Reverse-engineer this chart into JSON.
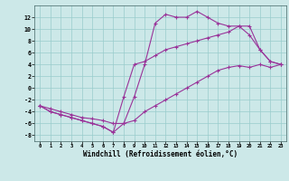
{
  "xlabel": "Windchill (Refroidissement éolien,°C)",
  "background_color": "#cce8e8",
  "grid_color": "#99cccc",
  "line_color": "#993399",
  "xlim": [
    -0.5,
    23.5
  ],
  "ylim": [
    -9,
    14
  ],
  "xticks": [
    0,
    1,
    2,
    3,
    4,
    5,
    6,
    7,
    8,
    9,
    10,
    11,
    12,
    13,
    14,
    15,
    16,
    17,
    18,
    19,
    20,
    21,
    22,
    23
  ],
  "yticks": [
    -8,
    -6,
    -4,
    -2,
    0,
    2,
    4,
    6,
    8,
    10,
    12
  ],
  "line1_x": [
    0,
    1,
    2,
    3,
    4,
    5,
    6,
    7,
    8,
    9,
    10,
    11,
    12,
    13,
    14,
    15,
    16,
    17,
    18,
    19,
    20,
    21,
    22,
    23
  ],
  "line1_y": [
    -3,
    -4,
    -4.5,
    -5,
    -5.5,
    -6,
    -6.5,
    -7.5,
    -6,
    -1.5,
    4,
    11,
    12.5,
    12,
    12,
    13,
    12,
    11,
    10.5,
    10.5,
    9,
    6.5,
    4.5,
    4
  ],
  "line2_x": [
    0,
    1,
    2,
    3,
    4,
    5,
    6,
    7,
    8,
    9,
    10,
    11,
    12,
    13,
    14,
    15,
    16,
    17,
    18,
    19,
    20,
    21,
    22,
    23
  ],
  "line2_y": [
    -3,
    -3.5,
    -4,
    -4.5,
    -5,
    -5.2,
    -5.5,
    -6,
    -6,
    -5.5,
    -4,
    -3,
    -2,
    -1,
    0,
    1,
    2,
    3,
    3.5,
    3.8,
    3.5,
    4,
    3.5,
    4
  ],
  "line3_x": [
    0,
    1,
    2,
    3,
    4,
    5,
    6,
    7,
    8,
    9,
    10,
    11,
    12,
    13,
    14,
    15,
    16,
    17,
    18,
    19,
    20,
    21,
    22,
    23
  ],
  "line3_y": [
    -3,
    -4,
    -4.5,
    -5,
    -5.5,
    -6,
    -6.5,
    -7.5,
    -1.5,
    4,
    4.5,
    5.5,
    6.5,
    7,
    7.5,
    8,
    8.5,
    9,
    9.5,
    10.5,
    10.5,
    6.5,
    4.5,
    4
  ]
}
